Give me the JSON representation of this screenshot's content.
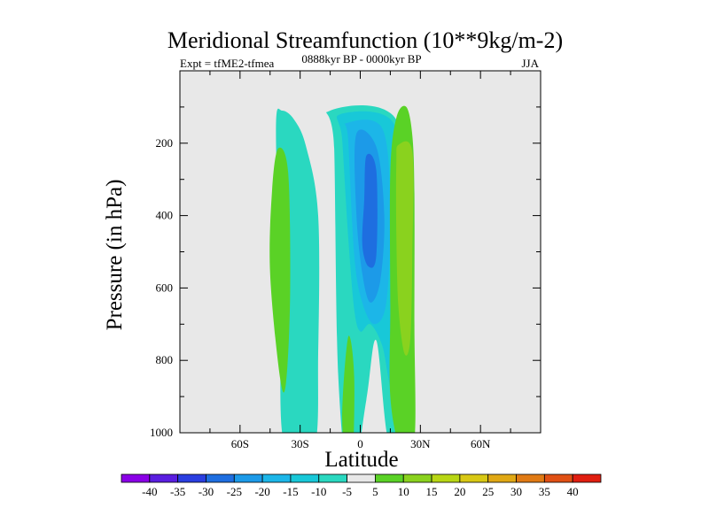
{
  "chart_data": {
    "type": "contour",
    "title": "Meridional Streamfunction (10**9kg/m-2)",
    "left_label": "Expt = tfME2-tfmea",
    "center_label": "0888kyr BP - 0000kyr BP",
    "right_label": "JJA",
    "xlabel": "Latitude",
    "ylabel": "Pressure (in hPa)",
    "xlim": [
      -90,
      90
    ],
    "ylim": [
      0,
      1000
    ],
    "y_inverted": true,
    "x_ticks": [
      {
        "value": -60,
        "label": "60S"
      },
      {
        "value": -30,
        "label": "30S"
      },
      {
        "value": 0,
        "label": "0"
      },
      {
        "value": 30,
        "label": "30N"
      },
      {
        "value": 60,
        "label": "60N"
      }
    ],
    "y_ticks": [
      {
        "value": 200,
        "label": "200"
      },
      {
        "value": 400,
        "label": "400"
      },
      {
        "value": 600,
        "label": "600"
      },
      {
        "value": 800,
        "label": "800"
      },
      {
        "value": 1000,
        "label": "1000"
      }
    ],
    "colorbar": {
      "labels": [
        "-40",
        "-35",
        "-30",
        "-25",
        "-20",
        "-15",
        "-10",
        "-5",
        "5",
        "10",
        "15",
        "20",
        "25",
        "30",
        "35",
        "40"
      ],
      "colors": [
        "#8a00e6",
        "#5a1ee0",
        "#2a3ee0",
        "#1e6ee0",
        "#1c9ae8",
        "#1cb6e8",
        "#18c8d8",
        "#2ad8c0",
        "#e8e8e8",
        "#5ad226",
        "#8ad21e",
        "#b8d614",
        "#d8c814",
        "#e0a814",
        "#e07a14",
        "#e05014",
        "#e01e10"
      ],
      "over_color": "#e01e10"
    },
    "contours": [
      {
        "name": "teal-band-left",
        "value": -5,
        "color": "#2ad8c0",
        "points": [
          [
            -27,
            210
          ],
          [
            -21,
            400
          ],
          [
            -21,
            780
          ],
          [
            -23,
            1040
          ],
          [
            -38,
            1030
          ],
          [
            -40,
            720
          ],
          [
            -41,
            440
          ],
          [
            -42,
            140
          ],
          [
            -39,
            110
          ],
          [
            -33,
            135
          ]
        ]
      },
      {
        "name": "teal-band-center",
        "value": -5,
        "color": "#2ad8c0",
        "points": [
          [
            -15,
            110
          ],
          [
            18,
            135
          ],
          [
            24,
            465
          ],
          [
            24,
            740
          ],
          [
            22,
            980
          ],
          [
            14,
            1020
          ],
          [
            8,
            745
          ],
          [
            3,
            910
          ],
          [
            -5,
            1150
          ],
          [
            -11,
            840
          ],
          [
            -13,
            215
          ]
        ]
      },
      {
        "name": "cyan-core",
        "value": -10,
        "color": "#18c8d8",
        "points": [
          [
            -10,
            120
          ],
          [
            16,
            140
          ],
          [
            21,
            360
          ],
          [
            20,
            690
          ],
          [
            16,
            880
          ],
          [
            11,
            760
          ],
          [
            5,
            700
          ],
          [
            0,
            720
          ],
          [
            -3,
            660
          ],
          [
            -6,
            460
          ],
          [
            -9,
            190
          ]
        ]
      },
      {
        "name": "blue-core-outer",
        "value": -15,
        "color": "#1cb6e8",
        "points": [
          [
            -7,
            145
          ],
          [
            11,
            160
          ],
          [
            15,
            390
          ],
          [
            13,
            640
          ],
          [
            7,
            700
          ],
          [
            1,
            640
          ],
          [
            -3,
            510
          ],
          [
            -6,
            190
          ]
        ]
      },
      {
        "name": "blue-core-mid",
        "value": -20,
        "color": "#1c9ae8",
        "points": [
          [
            -2,
            175
          ],
          [
            8,
            210
          ],
          [
            12,
            400
          ],
          [
            10,
            580
          ],
          [
            5,
            640
          ],
          [
            1,
            560
          ],
          [
            -2,
            390
          ]
        ]
      },
      {
        "name": "blue-core-inner",
        "value": -25,
        "color": "#1e6ee0",
        "points": [
          [
            3,
            235
          ],
          [
            8,
            275
          ],
          [
            8,
            510
          ],
          [
            4,
            540
          ],
          [
            1,
            480
          ],
          [
            2,
            355
          ]
        ]
      },
      {
        "name": "green-band-right",
        "value": 5,
        "color": "#5ad226",
        "points": [
          [
            18,
            130
          ],
          [
            23,
            100
          ],
          [
            26,
            180
          ],
          [
            27,
            340
          ],
          [
            27,
            700
          ],
          [
            27,
            1020
          ],
          [
            20,
            1040
          ],
          [
            15,
            900
          ],
          [
            15,
            650
          ],
          [
            15,
            280
          ]
        ]
      },
      {
        "name": "lime-band-right",
        "value": 10,
        "color": "#8ad21e",
        "points": [
          [
            19,
            205
          ],
          [
            26,
            225
          ],
          [
            26,
            500
          ],
          [
            25,
            740
          ],
          [
            22,
            780
          ],
          [
            19,
            650
          ],
          [
            18,
            450
          ],
          [
            18,
            255
          ]
        ]
      },
      {
        "name": "green-band-far-left",
        "value": 5,
        "color": "#5ad226",
        "points": [
          [
            -41,
            215
          ],
          [
            -36,
            280
          ],
          [
            -35,
            610
          ],
          [
            -37,
            860
          ],
          [
            -40,
            850
          ],
          [
            -45,
            560
          ],
          [
            -44,
            330
          ]
        ]
      },
      {
        "name": "green-band-small",
        "value": 5,
        "color": "#5ad226",
        "points": [
          [
            -6,
            735
          ],
          [
            -3,
            850
          ],
          [
            -4,
            1120
          ],
          [
            -6,
            1120
          ],
          [
            -9,
            960
          ]
        ]
      }
    ]
  }
}
